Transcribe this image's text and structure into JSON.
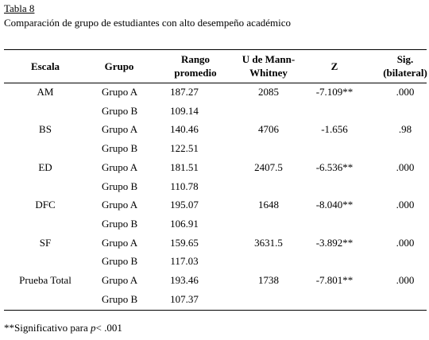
{
  "header": {
    "label": "Tabla 8",
    "title": "Comparación de grupo de estudiantes con alto desempeño académico"
  },
  "table": {
    "columns": [
      [
        "Escala"
      ],
      [
        "Grupo"
      ],
      [
        "Rango",
        "promedio"
      ],
      [
        "U de Mann-",
        "Whitney"
      ],
      [
        "Z"
      ],
      [
        "Sig.",
        "(bilateral)"
      ]
    ],
    "scales": [
      {
        "name": "AM",
        "u": "2085",
        "z": "-7.109**",
        "sig": ".000",
        "groups": [
          {
            "group": "Grupo A",
            "rank": "187.27"
          },
          {
            "group": "Grupo B",
            "rank": "109.14"
          }
        ]
      },
      {
        "name": "BS",
        "u": "4706",
        "z": "-1.656",
        "sig": ".98",
        "groups": [
          {
            "group": "Grupo A",
            "rank": "140.46"
          },
          {
            "group": "Grupo B",
            "rank": "122.51"
          }
        ]
      },
      {
        "name": "ED",
        "u": "2407.5",
        "z": "-6.536**",
        "sig": ".000",
        "groups": [
          {
            "group": "Grupo A",
            "rank": "181.51"
          },
          {
            "group": "Grupo B",
            "rank": "110.78"
          }
        ]
      },
      {
        "name": "DFC",
        "u": "1648",
        "z": "-8.040**",
        "sig": ".000",
        "groups": [
          {
            "group": "Grupo A",
            "rank": "195.07"
          },
          {
            "group": "Grupo B",
            "rank": "106.91"
          }
        ]
      },
      {
        "name": "SF",
        "u": "3631.5",
        "z": "-3.892**",
        "sig": ".000",
        "groups": [
          {
            "group": "Grupo A",
            "rank": "159.65"
          },
          {
            "group": "Grupo B",
            "rank": "117.03"
          }
        ]
      },
      {
        "name": "Prueba Total",
        "u": "1738",
        "z": "-7.801**",
        "sig": ".000",
        "groups": [
          {
            "group": "Grupo A",
            "rank": "193.46"
          },
          {
            "group": "Grupo B",
            "rank": "107.37"
          }
        ]
      }
    ]
  },
  "footnote": {
    "text": "**Significativo para ",
    "symbol": "p",
    "threshold": "< .001"
  }
}
